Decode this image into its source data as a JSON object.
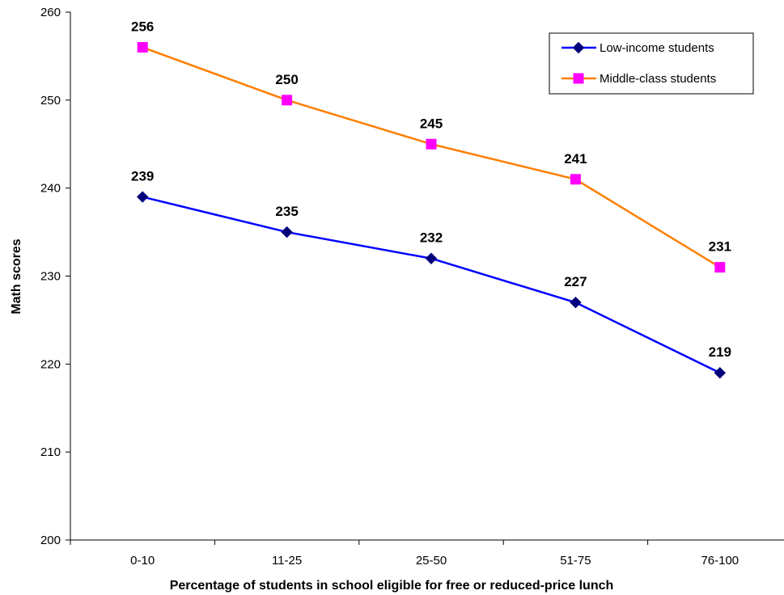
{
  "chart_data": {
    "type": "line",
    "title": "",
    "xlabel": "Percentage of students in school eligible for free or reduced-price lunch",
    "ylabel": "Math scores",
    "ylim": [
      200,
      260
    ],
    "ytick_step": 10,
    "yticks": [
      "200",
      "210",
      "220",
      "230",
      "240",
      "250",
      "260"
    ],
    "categories": [
      "0-10",
      "11-25",
      "25-50",
      "51-75",
      "76-100"
    ],
    "grid": false,
    "legend_position": "top-right",
    "series": [
      {
        "name": "Low-income students",
        "values": [
          239,
          235,
          232,
          227,
          219
        ],
        "labels": [
          "239",
          "235",
          "232",
          "227",
          "219"
        ],
        "color": "#0000FF",
        "marker_color": "#00007A",
        "marker": "diamond"
      },
      {
        "name": "Middle-class students",
        "values": [
          256,
          250,
          245,
          241,
          231
        ],
        "labels": [
          "256",
          "250",
          "245",
          "241",
          "231"
        ],
        "color": "#FF7F00",
        "marker_color": "#FF00FF",
        "marker": "square"
      }
    ]
  }
}
